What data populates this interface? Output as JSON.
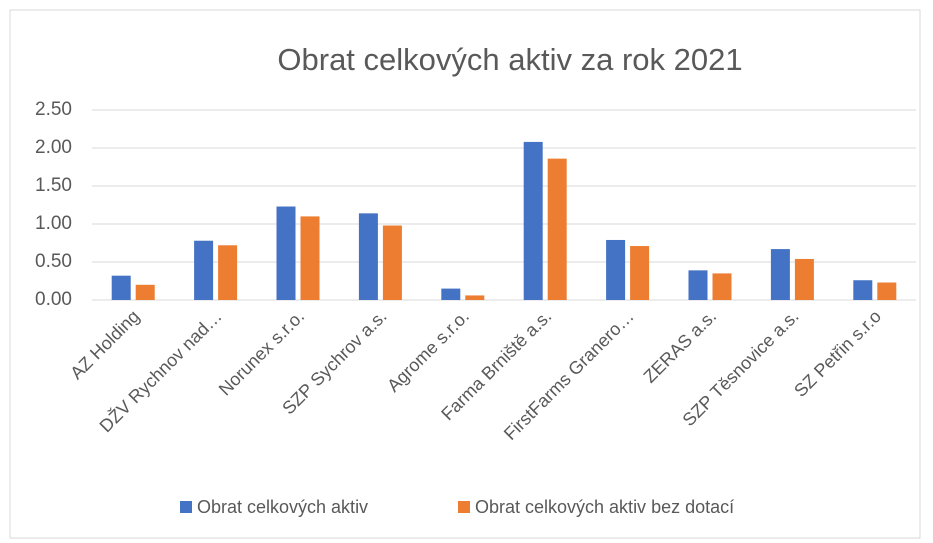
{
  "chart_data": {
    "type": "bar",
    "title": "Obrat celkových aktiv za rok 2021",
    "categories": [
      "AZ Holding",
      "DŽV Rychnov nad…",
      "Norunex s.r.o.",
      "SZP Sychrov a.s.",
      "Agrome s.r.o.",
      "Farma Brniště a.s.",
      "FirstFarms Granero…",
      "ZERAS a.s.",
      "SZP Těsnovice a.s.",
      "SZ Petřin s.r.o"
    ],
    "series": [
      {
        "name": "Obrat celkových aktiv",
        "color": "#4472c4",
        "values": [
          0.32,
          0.78,
          1.23,
          1.14,
          0.15,
          2.08,
          0.79,
          0.39,
          0.67,
          0.26
        ]
      },
      {
        "name": "Obrat celkových aktiv bez dotací",
        "color": "#ed7d31",
        "values": [
          0.2,
          0.72,
          1.1,
          0.98,
          0.06,
          1.86,
          0.71,
          0.35,
          0.54,
          0.23
        ]
      }
    ],
    "ylim": [
      0,
      2.5
    ],
    "yticks": [
      {
        "value": 0,
        "label": "0.00"
      },
      {
        "value": 0.5,
        "label": "0.50"
      },
      {
        "value": 1,
        "label": "1.00"
      },
      {
        "value": 1.5,
        "label": "1.50"
      },
      {
        "value": 2,
        "label": "2.00"
      },
      {
        "value": 2.5,
        "label": "2.50"
      }
    ],
    "grid": true,
    "legend": "bottom"
  }
}
